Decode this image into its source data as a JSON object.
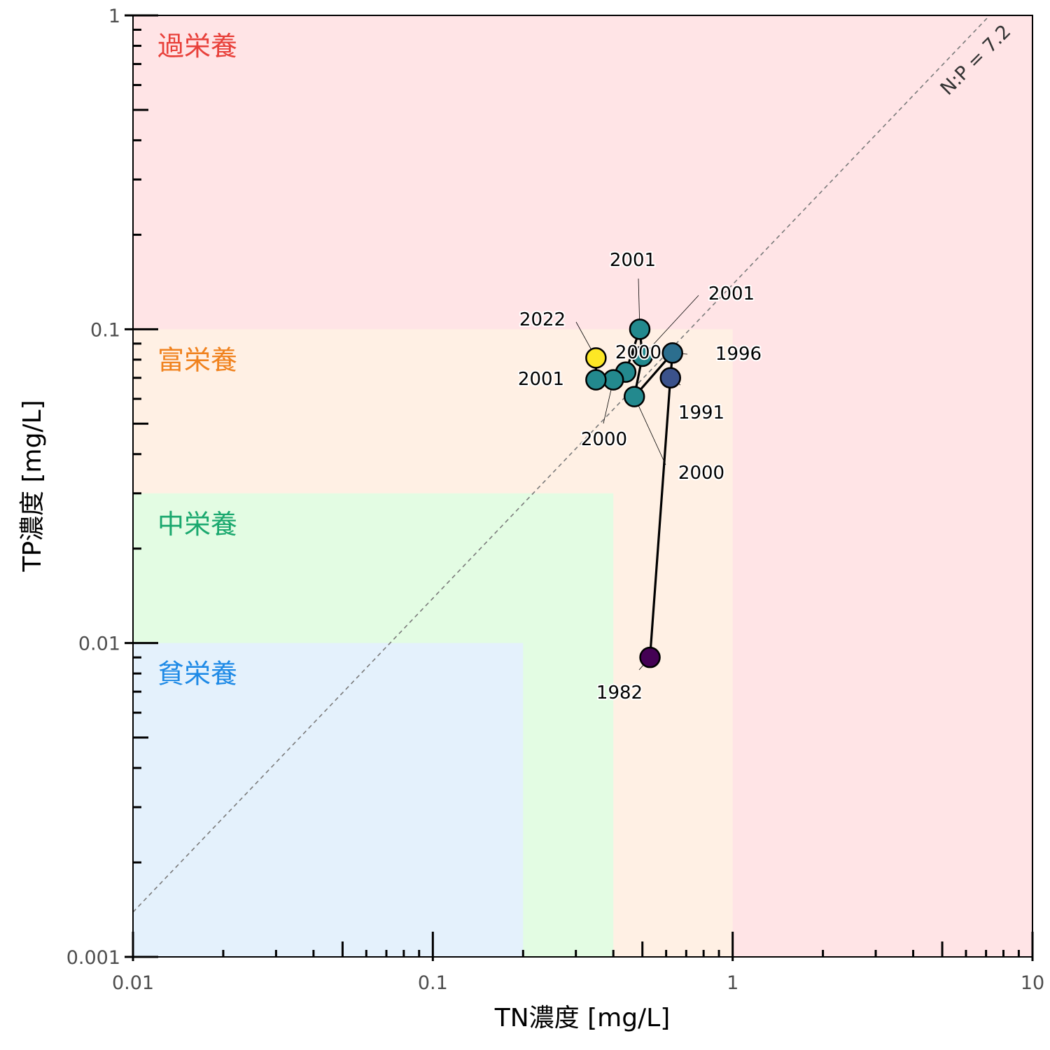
{
  "chart_data": {
    "type": "scatter",
    "xlabel": "TN濃度 [mg/L]",
    "ylabel": "TP濃度 [mg/L]",
    "x_scale": "log",
    "y_scale": "log",
    "xlim": [
      0.01,
      10
    ],
    "ylim": [
      0.001,
      1
    ],
    "x_ticks": [
      {
        "value": 0.01,
        "label": "0.01"
      },
      {
        "value": 0.1,
        "label": "0.1"
      },
      {
        "value": 1,
        "label": "1"
      },
      {
        "value": 10,
        "label": "10"
      }
    ],
    "y_ticks": [
      {
        "value": 0.001,
        "label": "0.001"
      },
      {
        "value": 0.01,
        "label": "0.01"
      },
      {
        "value": 0.1,
        "label": "0.1"
      },
      {
        "value": 1,
        "label": "1"
      }
    ],
    "zones": [
      {
        "label": "過栄養",
        "tn_max": 10,
        "tp_max": 1,
        "fill": "#ffe4e6",
        "text_color": "#e8403a"
      },
      {
        "label": "富栄養",
        "tn_max": 1,
        "tp_max": 0.1,
        "fill": "#fff0e4",
        "text_color": "#f0821e"
      },
      {
        "label": "中栄養",
        "tn_max": 0.4,
        "tp_max": 0.03,
        "fill": "#e3fce3",
        "text_color": "#1aa86e"
      },
      {
        "label": "貧栄養",
        "tn_max": 0.2,
        "tp_max": 0.01,
        "fill": "#e4f1fc",
        "text_color": "#1e8ae6"
      }
    ],
    "reference_line": {
      "ratio": 7.2,
      "label": "N:P = 7.2"
    },
    "points": [
      {
        "year": "1982",
        "tn": 0.53,
        "tp": 0.009,
        "color": "#440154"
      },
      {
        "year": "1991",
        "tn": 0.62,
        "tp": 0.07,
        "color": "#3b528b"
      },
      {
        "year": "1996",
        "tn": 0.63,
        "tp": 0.084,
        "color": "#2c6e8e"
      },
      {
        "year": "2000",
        "tn": 0.47,
        "tp": 0.061,
        "color": "#23898e"
      },
      {
        "year": "2000",
        "tn": 0.5,
        "tp": 0.082,
        "color": "#23898e"
      },
      {
        "year": "2001",
        "tn": 0.49,
        "tp": 0.1,
        "color": "#23898e"
      },
      {
        "year": "2001",
        "tn": 0.44,
        "tp": 0.073,
        "color": "#23898e"
      },
      {
        "year": "2000",
        "tn": 0.4,
        "tp": 0.069,
        "color": "#23898e"
      },
      {
        "year": "2001",
        "tn": 0.35,
        "tp": 0.069,
        "color": "#23898e"
      },
      {
        "year": "2022",
        "tn": 0.35,
        "tp": 0.081,
        "color": "#fde725"
      }
    ],
    "grid": false,
    "legend": "none"
  }
}
